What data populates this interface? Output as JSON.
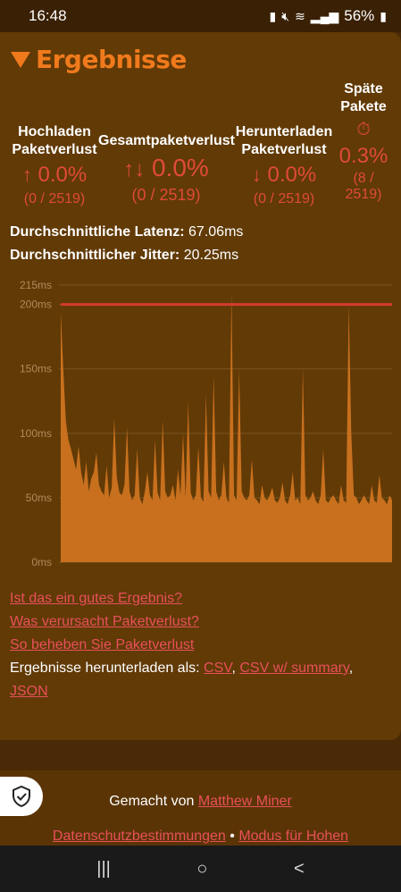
{
  "status": {
    "time": "16:48",
    "battery": "56%"
  },
  "header": {
    "title": "Ergebnisse"
  },
  "metrics": {
    "upload": {
      "label1": "Hochladen",
      "label2": "Paketverlust",
      "arrow": "↑",
      "value": "0.0%",
      "count": "(0 / 2519)"
    },
    "total": {
      "label": "Gesamtpaketverlust",
      "arrow": "↑↓",
      "value": "0.0%",
      "count": "(0 / 2519)"
    },
    "download": {
      "label1": "Herunterladen",
      "label2": "Paketverlust",
      "arrow": "↓",
      "value": "0.0%",
      "count": "(0 / 2519)"
    },
    "late": {
      "label1": "Späte",
      "label2": "Pakete",
      "icon": "⏱",
      "value": "0.3%",
      "count1": "(8 /",
      "count2": "2519)"
    }
  },
  "stats": {
    "latency_label": "Durchschnittliche Latenz:",
    "latency_value": "67.06ms",
    "jitter_label": "Durchschnittlicher Jitter:",
    "jitter_value": "20.25ms"
  },
  "chart_data": {
    "type": "area",
    "y_ticks": [
      "0ms",
      "50ms",
      "100ms",
      "150ms",
      "200ms",
      "215ms"
    ],
    "ylim": [
      0,
      215
    ],
    "threshold": 200,
    "series_color": "#c8701e",
    "threshold_color": "#d63a2f",
    "values": [
      195,
      150,
      110,
      95,
      88,
      80,
      72,
      90,
      70,
      60,
      78,
      55,
      65,
      70,
      85,
      60,
      55,
      52,
      75,
      50,
      58,
      112,
      66,
      54,
      52,
      60,
      105,
      55,
      48,
      52,
      88,
      50,
      45,
      55,
      70,
      52,
      48,
      95,
      54,
      48,
      110,
      55,
      50,
      52,
      60,
      48,
      72,
      52,
      100,
      50,
      125,
      54,
      48,
      52,
      90,
      50,
      47,
      130,
      55,
      50,
      145,
      55,
      48,
      52,
      78,
      50,
      46,
      210,
      52,
      48,
      150,
      55,
      50,
      48,
      52,
      80,
      50,
      48,
      45,
      60,
      50,
      48,
      52,
      58,
      48,
      46,
      50,
      62,
      48,
      45,
      52,
      70,
      48,
      50,
      45,
      150,
      52,
      48,
      50,
      55,
      48,
      45,
      52,
      88,
      48,
      46,
      50,
      52,
      48,
      45,
      60,
      48,
      46,
      200,
      100,
      52,
      50,
      45,
      48,
      52,
      48,
      45,
      60,
      48,
      46,
      68,
      50,
      48,
      45,
      52,
      48
    ]
  },
  "links": {
    "good_result": "Ist das ein gutes Ergebnis?",
    "cause": "Was verursacht Paketverlust?",
    "fix": "So beheben Sie Paketverlust",
    "download_prefix": "Ergebnisse herunterladen als:",
    "csv": "CSV",
    "csv_summary": "CSV w/ summary",
    "json": "JSON"
  },
  "footer": {
    "made_by": "Gemacht von",
    "author": "Matthew Miner",
    "privacy": "Datenschutzbestimmungen",
    "separator": "•",
    "mode": "Modus für Hohen"
  },
  "nav": {
    "recent": "|||",
    "home": "○",
    "back": "<"
  }
}
